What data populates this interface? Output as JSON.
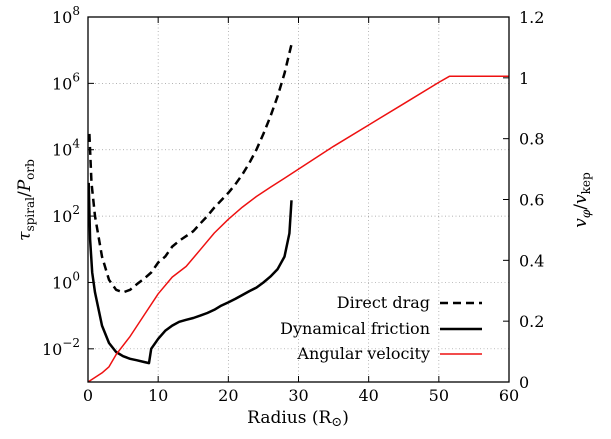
{
  "chart_data": {
    "type": "line",
    "xlabel": "Radius (R⊙)",
    "ylabel_left": "τspiral/Porb",
    "ylabel_left_parts": {
      "tau": "τ",
      "tau_sub": "spiral",
      "slash": "/",
      "p": "P",
      "p_sub": "orb"
    },
    "ylabel_right": "vφ/vkep",
    "ylabel_right_parts": {
      "v1": "v",
      "v1_sub": "φ",
      "slash": "/",
      "v2": "v",
      "v2_sub": "kep"
    },
    "xlim": [
      0,
      60
    ],
    "ylim_left": [
      0.001,
      100000000
    ],
    "ylim_right": [
      0,
      1.2
    ],
    "y_left_scale": "log",
    "grid": true,
    "legend_position": "bottom-right",
    "x_ticks": [
      "0",
      "10",
      "20",
      "30",
      "40",
      "50",
      "60"
    ],
    "y_left_ticks": [
      {
        "base": "10",
        "exp": "−2",
        "value": 0.01
      },
      {
        "base": "10",
        "exp": "0",
        "value": 1
      },
      {
        "base": "10",
        "exp": "2",
        "value": 100
      },
      {
        "base": "10",
        "exp": "4",
        "value": 10000
      },
      {
        "base": "10",
        "exp": "6",
        "value": 1000000
      },
      {
        "base": "10",
        "exp": "8",
        "value": 100000000
      }
    ],
    "y_right_ticks": [
      "0",
      "0.2",
      "0.4",
      "0.6",
      "0.8",
      "1",
      "1.2"
    ],
    "series": [
      {
        "name": "Direct drag",
        "axis": "left",
        "color": "#000000",
        "dash": "dashed",
        "x": [
          0.2,
          0.5,
          1,
          2,
          3,
          4,
          5,
          6,
          7,
          8,
          9,
          10,
          11,
          12,
          13,
          14,
          15,
          16,
          17,
          18,
          19,
          20,
          21,
          22,
          23,
          24,
          25,
          26,
          27,
          28,
          29
        ],
        "y": [
          30000,
          1000,
          100,
          6,
          1.2,
          0.6,
          0.5,
          0.6,
          0.9,
          1.3,
          2,
          4,
          6,
          12,
          18,
          25,
          35,
          60,
          100,
          180,
          300,
          500,
          900,
          1800,
          4000,
          10000,
          30000,
          100000,
          400000,
          2000000,
          15000000
        ]
      },
      {
        "name": "Dynamical friction",
        "axis": "left",
        "color": "#000000",
        "dash": "solid",
        "x": [
          0.1,
          0.3,
          0.6,
          1,
          2,
          3,
          4,
          5,
          6,
          7,
          8,
          8.7,
          9,
          10,
          11,
          12,
          13,
          14,
          15,
          16,
          17,
          18,
          19,
          20,
          21,
          22,
          23,
          24,
          25,
          26,
          27,
          28,
          28.7,
          29
        ],
        "y": [
          1000,
          20,
          2,
          0.5,
          0.05,
          0.015,
          0.008,
          0.006,
          0.005,
          0.0045,
          0.004,
          0.0037,
          0.01,
          0.02,
          0.035,
          0.05,
          0.065,
          0.075,
          0.085,
          0.1,
          0.12,
          0.15,
          0.2,
          0.25,
          0.32,
          0.42,
          0.55,
          0.7,
          1,
          1.5,
          2.5,
          6,
          30,
          300
        ]
      },
      {
        "name": "Angular velocity",
        "axis": "right",
        "color": "#ee1111",
        "dash": "solid",
        "x": [
          0,
          2,
          3,
          4,
          6,
          8,
          10,
          12,
          14,
          16,
          18,
          20,
          22,
          24,
          26,
          28,
          30,
          35,
          40,
          45,
          50,
          51.5,
          52,
          60
        ],
        "y": [
          0,
          0.03,
          0.05,
          0.09,
          0.15,
          0.22,
          0.29,
          0.345,
          0.38,
          0.435,
          0.49,
          0.535,
          0.575,
          0.61,
          0.64,
          0.67,
          0.7,
          0.775,
          0.845,
          0.915,
          0.985,
          1.005,
          1.005,
          1.005
        ]
      }
    ]
  }
}
